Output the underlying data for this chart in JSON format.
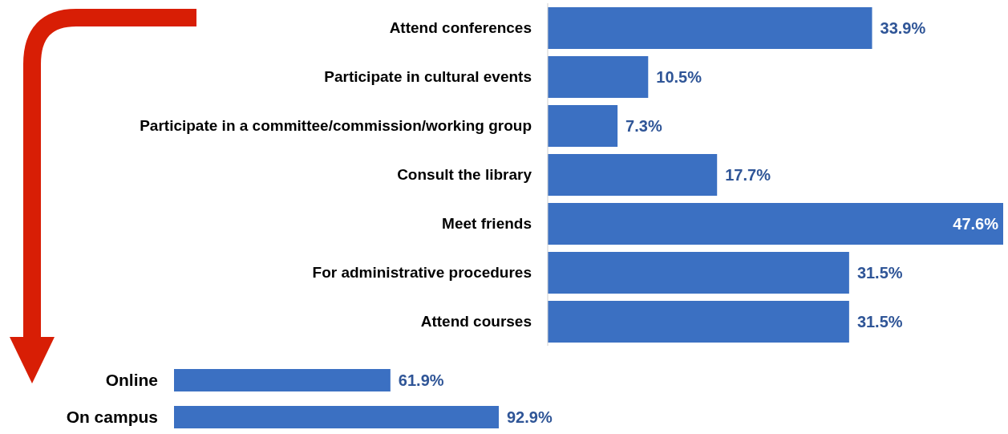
{
  "chart_data": [
    {
      "type": "bar",
      "orientation": "horizontal",
      "categories": [
        "Attend conferences",
        "Participate in cultural events",
        "Participate in a committee/commission/working group",
        "Consult the library",
        "Meet friends",
        "For administrative procedures",
        "Attend courses"
      ],
      "values": [
        33.9,
        10.5,
        7.3,
        17.7,
        47.6,
        31.5,
        31.5
      ],
      "color": "#3b70c2",
      "value_labels": [
        "33.9%",
        "10.5%",
        "7.3%",
        "17.7%",
        "47.6%",
        "31.5%",
        "31.5%"
      ]
    },
    {
      "type": "bar",
      "orientation": "horizontal",
      "categories": [
        "Online",
        "On campus"
      ],
      "values": [
        61.9,
        92.9
      ],
      "color": "#3b70c2",
      "value_labels": [
        "61.9%",
        "92.9%"
      ]
    }
  ]
}
